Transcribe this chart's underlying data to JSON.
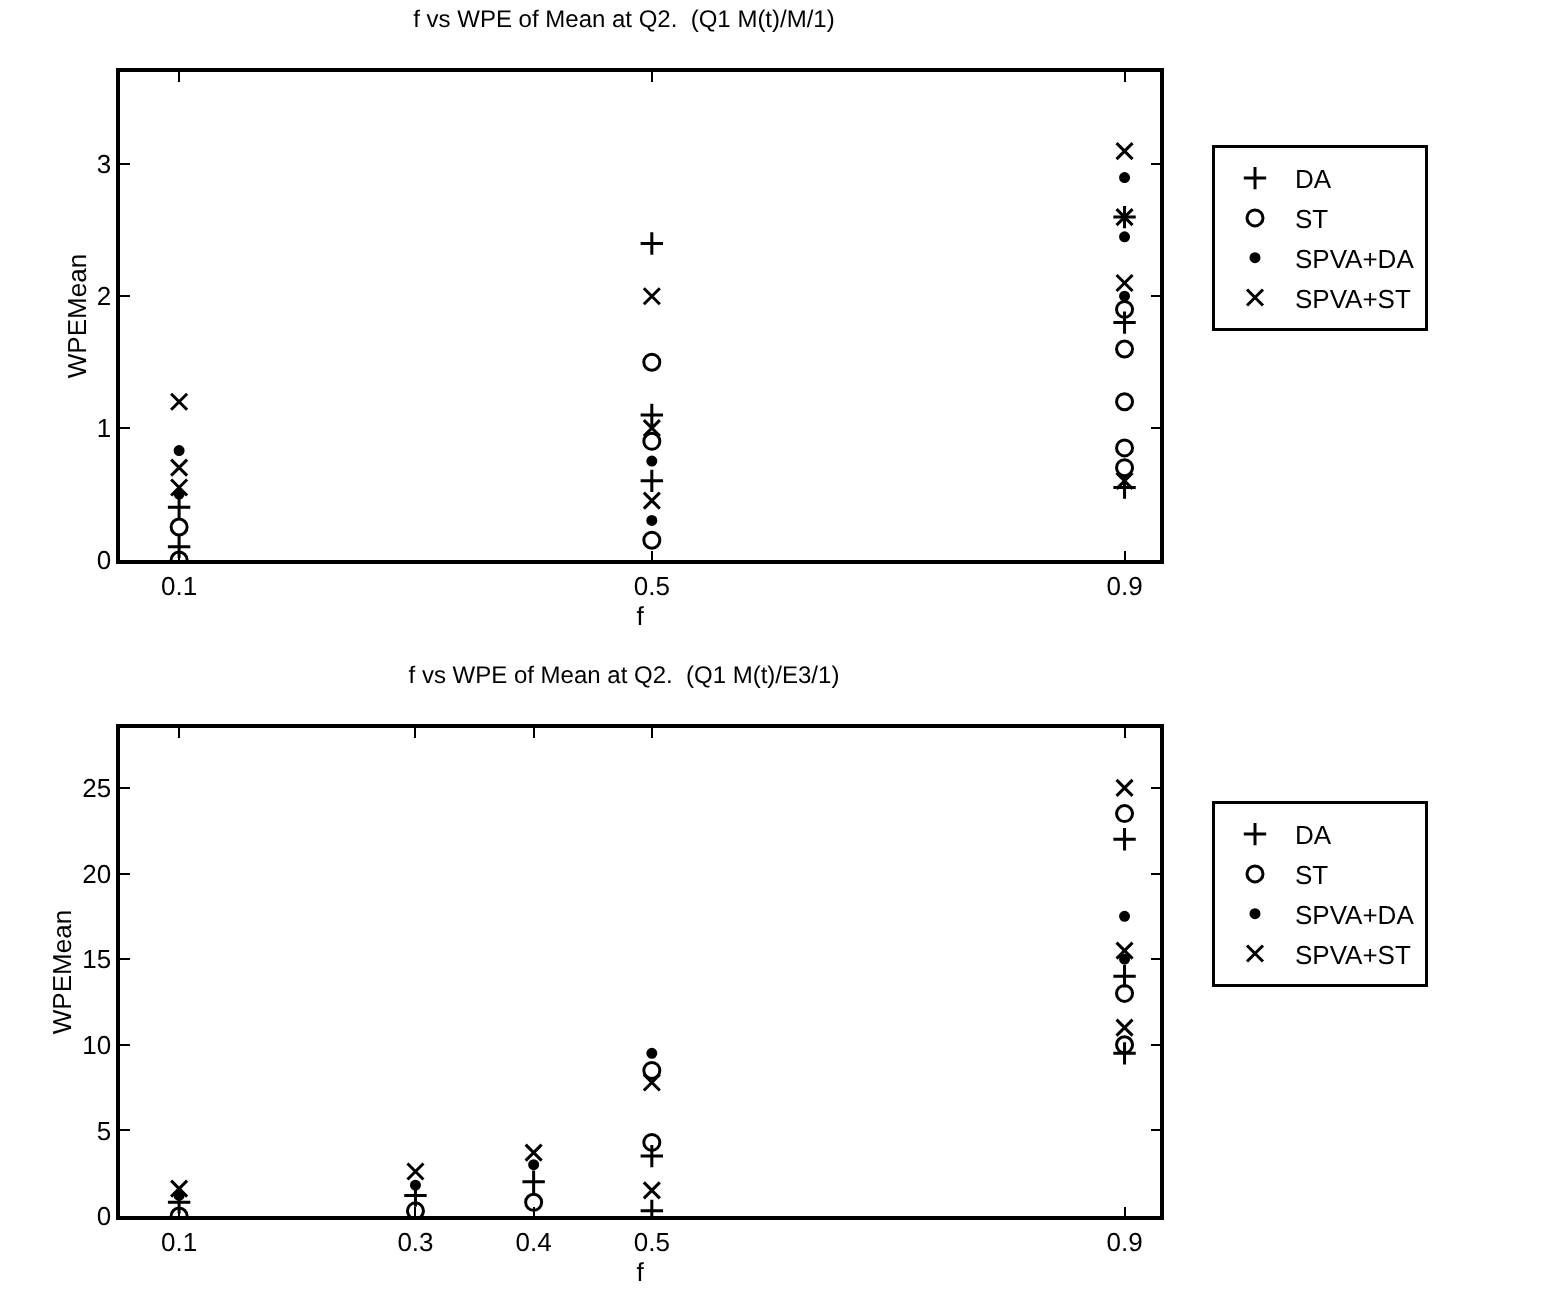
{
  "chart_data": [
    {
      "type": "scatter",
      "title": "f vs WPE of Mean at Q2.  (Q1 M(t)/M/1)",
      "xlabel": "f",
      "ylabel": "WPEMean",
      "xlim": [
        0.05,
        0.93
      ],
      "xticks": [
        0.1,
        0.5,
        0.9
      ],
      "ylim": [
        0,
        3.7
      ],
      "yticks": [
        0,
        1,
        2,
        3
      ],
      "grid": false,
      "legend": "right",
      "series": [
        {
          "name": "DA",
          "color": "#000000",
          "marker": "cross",
          "x": [
            0.1,
            0.1,
            0.5,
            0.5,
            0.5,
            0.9,
            0.9,
            0.9
          ],
          "values": [
            0.4,
            0.1,
            2.4,
            1.1,
            0.6,
            2.6,
            1.8,
            0.55
          ]
        },
        {
          "name": "ST",
          "color": "#000000",
          "marker": "circle",
          "x": [
            0.1,
            0.1,
            0.5,
            0.5,
            0.5,
            0.9,
            0.9,
            0.9,
            0.9,
            0.9
          ],
          "values": [
            0.25,
            0,
            1.5,
            0.9,
            0.15,
            1.9,
            1.6,
            1.2,
            0.85,
            0.7
          ]
        },
        {
          "name": "SPVA+DA",
          "color": "#000000",
          "marker": "point",
          "x": [
            0.1,
            0.1,
            0.5,
            0.5,
            0.9,
            0.9,
            0.9
          ],
          "values": [
            0.83,
            0.5,
            0.75,
            0.3,
            2.9,
            2.45,
            2.0
          ]
        },
        {
          "name": "SPVA+ST",
          "color": "#000000",
          "marker": "x",
          "x": [
            0.1,
            0.1,
            0.1,
            0.5,
            0.5,
            0.5,
            0.9,
            0.9,
            0.9,
            0.9
          ],
          "values": [
            1.2,
            0.7,
            0.55,
            2.0,
            1.0,
            0.45,
            3.1,
            2.6,
            2.1,
            0.6
          ]
        }
      ]
    },
    {
      "type": "scatter",
      "title": "f vs WPE of Mean at Q2.  (Q1 M(t)/E3/1)",
      "xlabel": "f",
      "ylabel": "WPEMean",
      "xlim": [
        0.05,
        0.93
      ],
      "xticks": [
        0.1,
        0.3,
        0.4,
        0.5,
        0.9
      ],
      "ylim": [
        0,
        28.5
      ],
      "yticks": [
        0,
        5,
        10,
        15,
        20,
        25
      ],
      "grid": false,
      "legend": "right",
      "series": [
        {
          "name": "DA",
          "color": "#000000",
          "marker": "cross",
          "x": [
            0.1,
            0.3,
            0.4,
            0.5,
            0.5,
            0.9,
            0.9,
            0.9
          ],
          "values": [
            0.8,
            1.2,
            2.0,
            3.5,
            0.3,
            22,
            14,
            9.5
          ]
        },
        {
          "name": "ST",
          "color": "#000000",
          "marker": "circle",
          "x": [
            0.1,
            0.3,
            0.4,
            0.5,
            0.5,
            0.9,
            0.9,
            0.9
          ],
          "values": [
            0,
            0.3,
            0.8,
            8.5,
            4.3,
            23.5,
            13,
            10
          ]
        },
        {
          "name": "SPVA+DA",
          "color": "#000000",
          "marker": "point",
          "x": [
            0.1,
            0.3,
            0.4,
            0.5,
            0.9,
            0.9
          ],
          "values": [
            1.2,
            1.8,
            3.0,
            9.5,
            17.5,
            15
          ]
        },
        {
          "name": "SPVA+ST",
          "color": "#000000",
          "marker": "x",
          "x": [
            0.1,
            0.3,
            0.4,
            0.5,
            0.5,
            0.9,
            0.9,
            0.9
          ],
          "values": [
            1.6,
            2.6,
            3.7,
            7.8,
            1.5,
            25,
            15.5,
            11
          ]
        }
      ]
    }
  ]
}
